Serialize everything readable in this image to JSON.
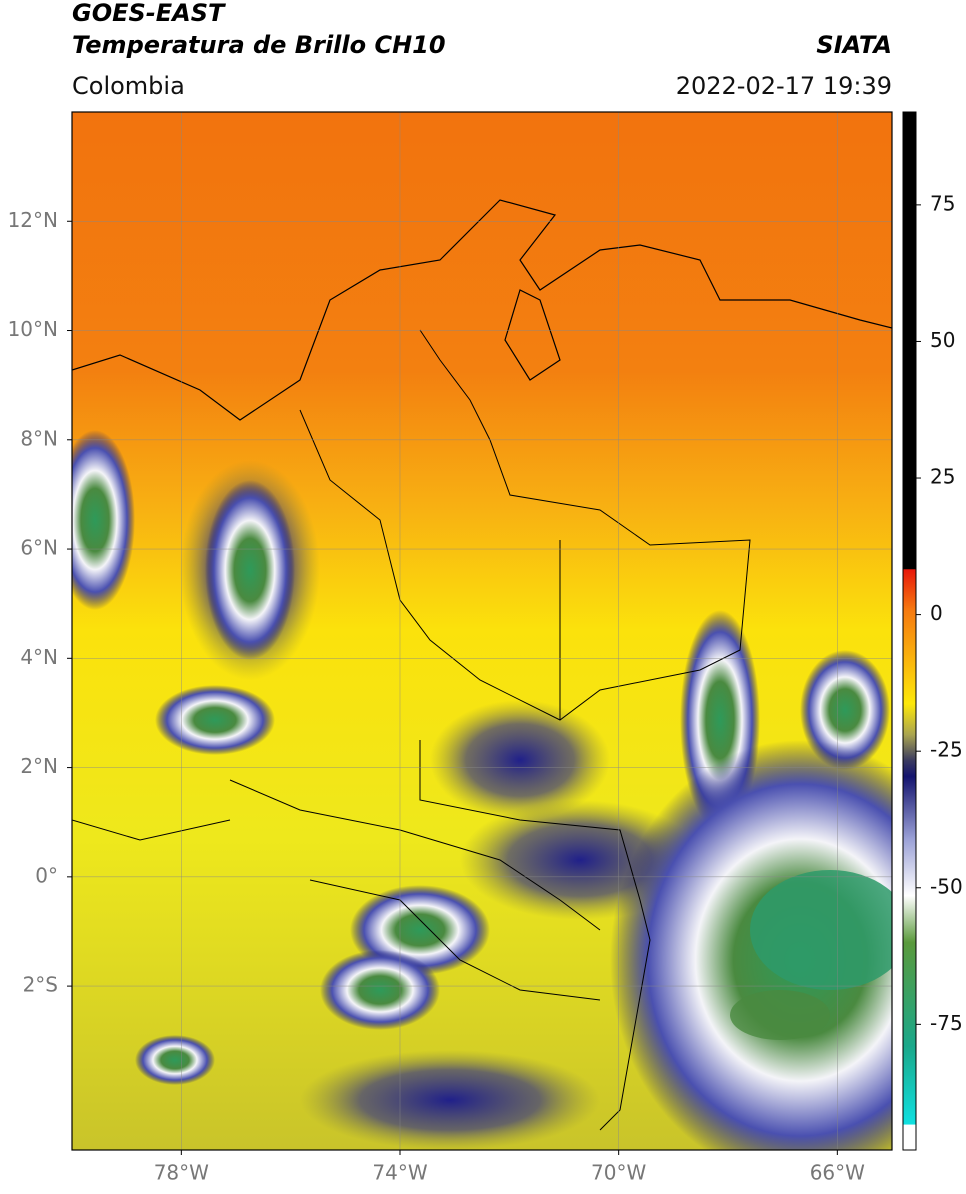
{
  "header": {
    "title": "GOES-EAST",
    "subtitle": "Temperatura de Brillo CH10",
    "source": "SIATA",
    "region": "Colombia",
    "datetime": "2022-02-17 19:39"
  },
  "map": {
    "xlim": [
      -80,
      -65
    ],
    "ylim": [
      -5,
      14
    ],
    "xticks": [
      {
        "value": -78,
        "label": "78°W"
      },
      {
        "value": -74,
        "label": "74°W"
      },
      {
        "value": -70,
        "label": "70°W"
      },
      {
        "value": -66,
        "label": "66°W"
      }
    ],
    "yticks": [
      {
        "value": 12,
        "label": "12°N"
      },
      {
        "value": 10,
        "label": "10°N"
      },
      {
        "value": 8,
        "label": "8°N"
      },
      {
        "value": 6,
        "label": "6°N"
      },
      {
        "value": 4,
        "label": "4°N"
      },
      {
        "value": 2,
        "label": "2°N"
      },
      {
        "value": 0,
        "label": "0°"
      },
      {
        "value": -2,
        "label": "2°S"
      }
    ],
    "grid": true
  },
  "colorbar": {
    "ylim": [
      -98,
      92
    ],
    "yticks": [
      75,
      50,
      25,
      0,
      -25,
      -50,
      -75
    ]
  }
}
